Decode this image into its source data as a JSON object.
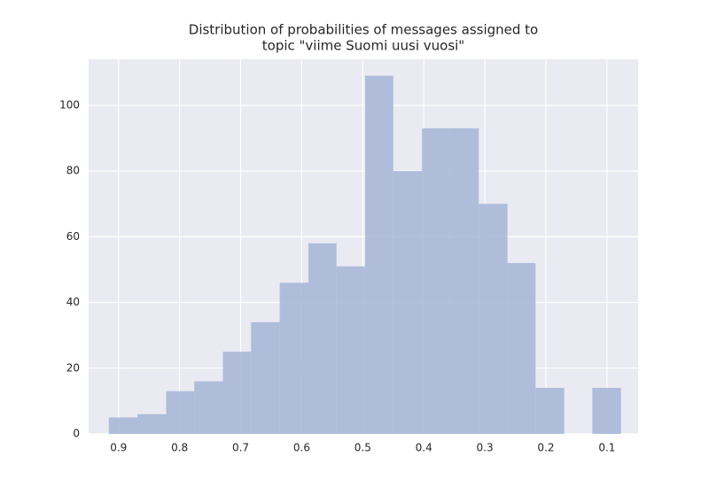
{
  "chart_data": {
    "type": "histogram",
    "title": [
      "Distribution of probabilities of messages assigned to",
      "topic \"viime Suomi uusi vuosi\""
    ],
    "bins": [
      0.077,
      0.124,
      0.17,
      0.217,
      0.263,
      0.31,
      0.357,
      0.403,
      0.45,
      0.496,
      0.543,
      0.589,
      0.636,
      0.683,
      0.729,
      0.776,
      0.822,
      0.869,
      0.916
    ],
    "values": [
      14,
      0,
      14,
      52,
      70,
      93,
      93,
      80,
      109,
      51,
      58,
      46,
      34,
      25,
      16,
      13,
      6,
      5
    ],
    "color": "#a8b8d8",
    "xlim": [
      0.949,
      0.049
    ],
    "xticks": [
      0.9,
      0.8,
      0.7,
      0.6,
      0.5,
      0.4,
      0.3,
      0.2,
      0.1
    ],
    "ylim": [
      0,
      114
    ],
    "yticks": [
      0,
      20,
      40,
      60,
      80,
      100
    ],
    "grid": true
  }
}
